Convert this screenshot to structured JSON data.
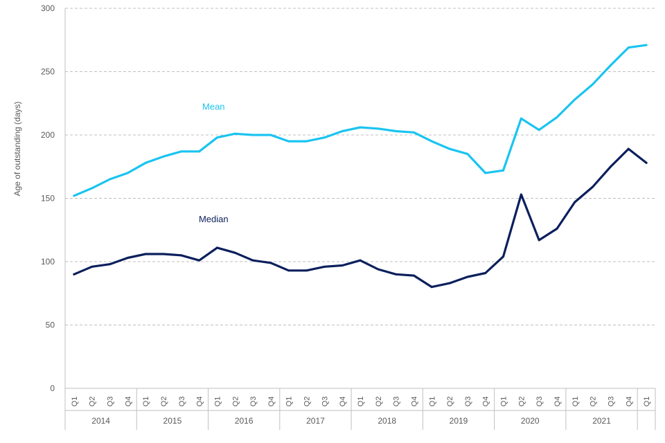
{
  "chart_data": {
    "type": "line",
    "title": "",
    "xlabel": "",
    "ylabel": "Age of outstanding (days)",
    "ylim": [
      0,
      300
    ],
    "yticks": [
      0,
      50,
      100,
      150,
      200,
      250,
      300
    ],
    "grid": true,
    "quarters": [
      "Q1",
      "Q2",
      "Q3",
      "Q4",
      "Q1",
      "Q2",
      "Q3",
      "Q4",
      "Q1",
      "Q2",
      "Q3",
      "Q4",
      "Q1",
      "Q2",
      "Q3",
      "Q4",
      "Q1",
      "Q2",
      "Q3",
      "Q4",
      "Q1",
      "Q2",
      "Q3",
      "Q4",
      "Q1",
      "Q2",
      "Q3",
      "Q4",
      "Q1",
      "Q2",
      "Q3",
      "Q4",
      "Q1"
    ],
    "years": [
      {
        "label": "2014",
        "quarters": 4
      },
      {
        "label": "2015",
        "quarters": 4
      },
      {
        "label": "2016",
        "quarters": 4
      },
      {
        "label": "2017",
        "quarters": 4
      },
      {
        "label": "2018",
        "quarters": 4
      },
      {
        "label": "2019",
        "quarters": 4
      },
      {
        "label": "2020",
        "quarters": 4
      },
      {
        "label": "2021",
        "quarters": 4
      },
      {
        "label": "",
        "quarters": 1
      }
    ],
    "series": [
      {
        "name": "Mean",
        "color": "#1ac4f0",
        "values": [
          152,
          158,
          165,
          170,
          178,
          183,
          187,
          187,
          198,
          201,
          200,
          200,
          195,
          195,
          198,
          203,
          206,
          205,
          203,
          202,
          195,
          189,
          185,
          170,
          172,
          213,
          204,
          214,
          228,
          240,
          255,
          269,
          271
        ]
      },
      {
        "name": "Median",
        "color": "#0b1f5c",
        "values": [
          90,
          96,
          98,
          103,
          106,
          106,
          105,
          101,
          111,
          107,
          101,
          99,
          93,
          93,
          96,
          97,
          101,
          94,
          90,
          89,
          80,
          83,
          88,
          91,
          104,
          153,
          117,
          126,
          147,
          159,
          175,
          189,
          178
        ]
      }
    ]
  }
}
